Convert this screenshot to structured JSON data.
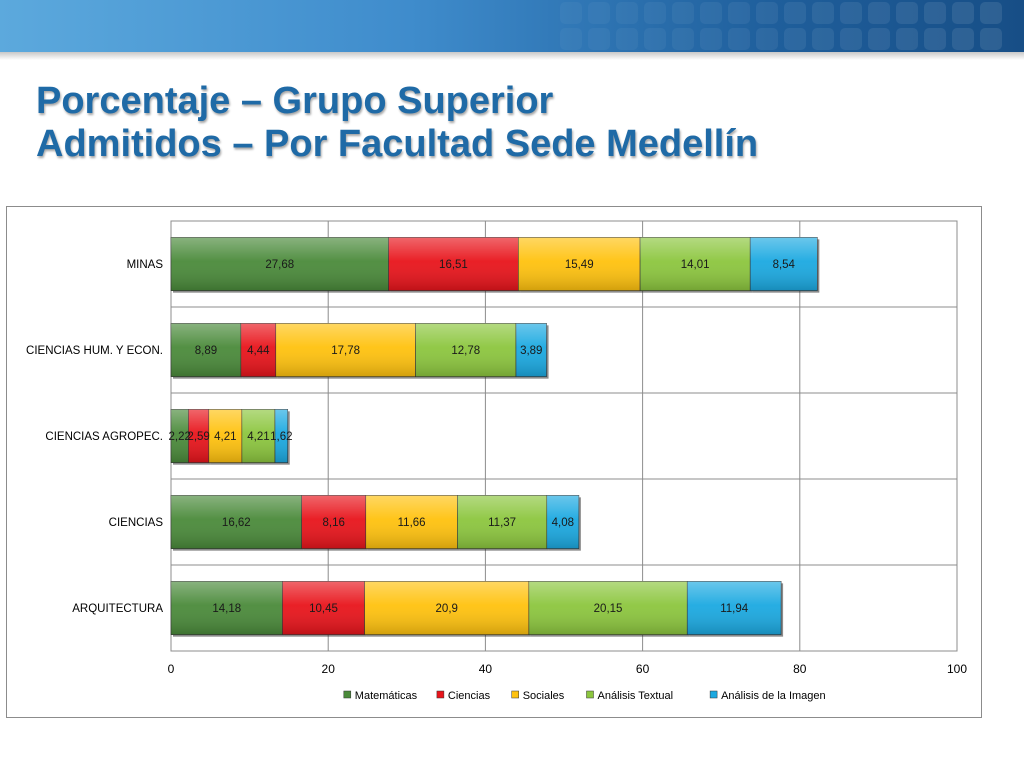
{
  "slide": {
    "title_line1": "Porcentaje – Grupo Superior",
    "title_line2": "Admitidos – Por Facultad Sede Medellín"
  },
  "colors": {
    "title": "#1f6aa6",
    "banner": "#3f8ccc"
  },
  "chart_data": {
    "type": "bar",
    "orientation": "horizontal",
    "stacked": true,
    "categories": [
      "MINAS",
      "CIENCIAS HUM. Y ECON.",
      "CIENCIAS AGROPEC.",
      "CIENCIAS",
      "ARQUITECTURA"
    ],
    "series": [
      {
        "name": "Matemáticas",
        "color": "#4a8a3a",
        "values": [
          27.68,
          8.89,
          2.22,
          16.62,
          14.18
        ],
        "labels": [
          "27,68",
          "8,89",
          "2,22",
          "16,62",
          "14,18"
        ]
      },
      {
        "name": "Ciencias",
        "color": "#e8141b",
        "values": [
          16.51,
          4.44,
          2.59,
          8.16,
          10.45
        ],
        "labels": [
          "16,51",
          "4,44",
          "2,59",
          "8,16",
          "10,45"
        ]
      },
      {
        "name": "Sociales",
        "color": "#ffc20e",
        "values": [
          15.49,
          17.78,
          4.21,
          11.66,
          20.9
        ],
        "labels": [
          "15,49",
          "17,78",
          "4,21",
          "11,66",
          "20,9"
        ]
      },
      {
        "name": "Análisis Textual",
        "color": "#8cc63e",
        "values": [
          14.01,
          12.78,
          4.21,
          11.37,
          20.15
        ],
        "labels": [
          "14,01",
          "12,78",
          "4,21",
          "11,37",
          "20,15"
        ]
      },
      {
        "name": "Análisis de la Imagen",
        "color": "#1ba9e1",
        "values": [
          8.54,
          3.89,
          1.62,
          4.08,
          11.94
        ],
        "labels": [
          "8,54",
          "3,89",
          "1,62",
          "4,08",
          "11,94"
        ]
      }
    ],
    "xlim": [
      0,
      100
    ],
    "xticks": [
      "0",
      "20",
      "40",
      "60",
      "80",
      "100"
    ],
    "grid": true,
    "legend_position": "bottom"
  }
}
